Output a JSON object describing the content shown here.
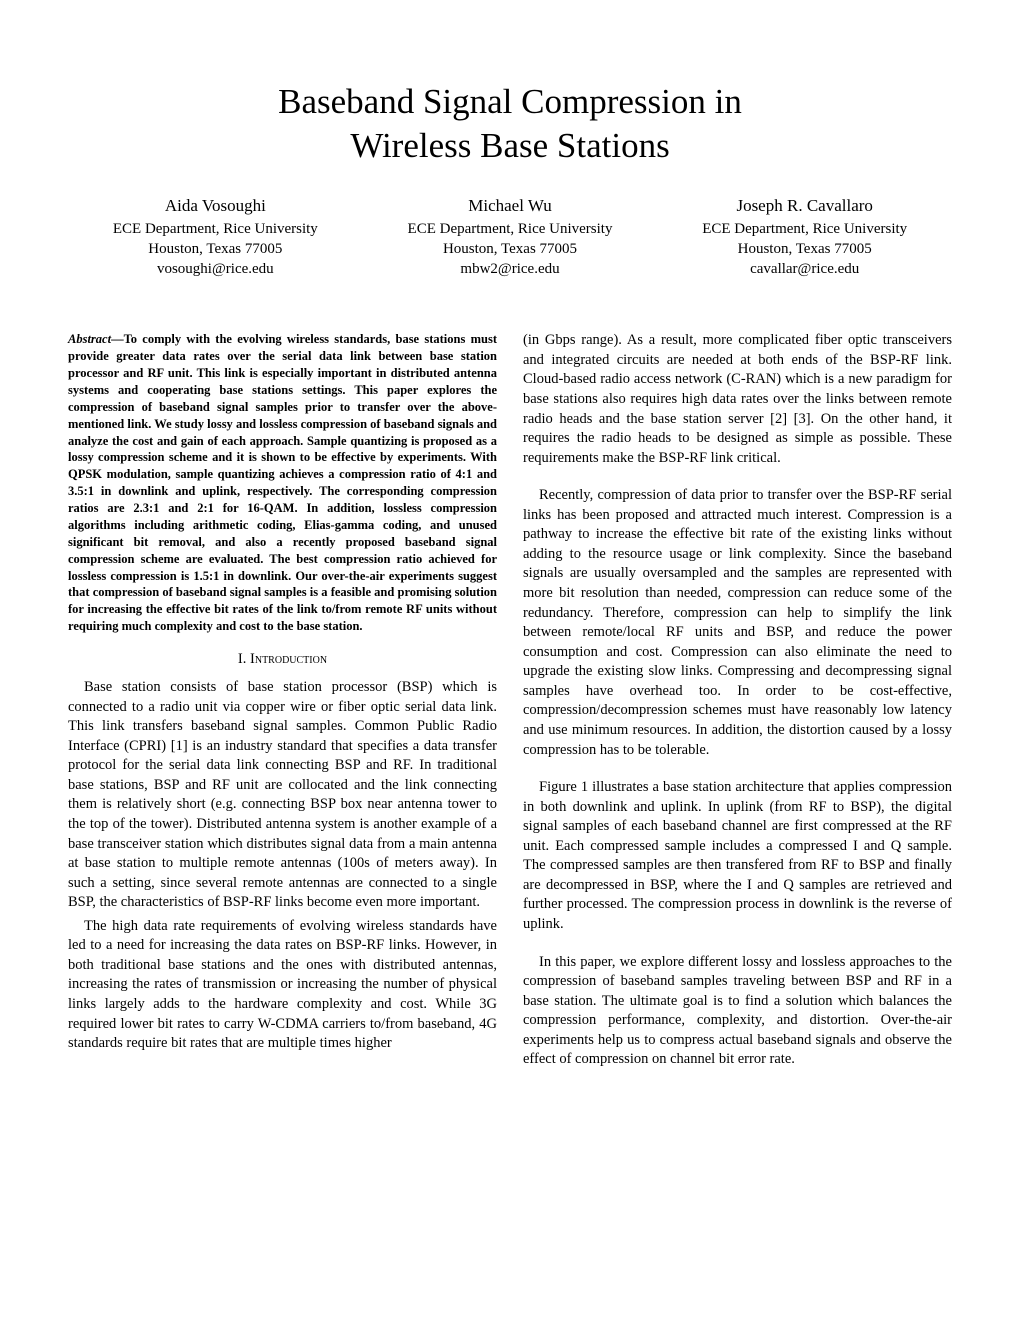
{
  "title_line1": "Baseband Signal Compression in",
  "title_line2": "Wireless Base Stations",
  "authors": [
    {
      "name": "Aida Vosoughi",
      "affil": "ECE Department, Rice University",
      "loc": "Houston, Texas 77005",
      "email": "vosoughi@rice.edu"
    },
    {
      "name": "Michael Wu",
      "affil": "ECE Department, Rice University",
      "loc": "Houston, Texas 77005",
      "email": "mbw2@rice.edu"
    },
    {
      "name": "Joseph R. Cavallaro",
      "affil": "ECE Department, Rice University",
      "loc": "Houston, Texas 77005",
      "email": "cavallar@rice.edu"
    }
  ],
  "abstract_label": "Abstract",
  "abstract_text": "—To comply with the evolving wireless standards, base stations must provide greater data rates over the serial data link between base station processor and RF unit. This link is especially important in distributed antenna systems and cooperating base stations settings. This paper explores the compression of baseband signal samples prior to transfer over the above-mentioned link. We study lossy and lossless compression of baseband signals and analyze the cost and gain of each approach. Sample quantizing is proposed as a lossy compression scheme and it is shown to be effective by experiments. With QPSK modulation, sample quantizing achieves a compression ratio of 4:1 and 3.5:1 in downlink and uplink, respectively. The corresponding compression ratios are 2.3:1 and 2:1 for 16-QAM. In addition, lossless compression algorithms including arithmetic coding, Elias-gamma coding, and unused significant bit removal, and also a recently proposed baseband signal compression scheme are evaluated. The best compression ratio achieved for lossless compression is 1.5:1 in downlink. Our over-the-air experiments suggest that compression of baseband signal samples is a feasible and promising solution for increasing the effective bit rates of the link to/from remote RF units without requiring much complexity and cost to the base station.",
  "section_number": "I.",
  "section_title": "Introduction",
  "left_p1": "Base station consists of base station processor (BSP) which is connected to a radio unit via copper wire or fiber optic serial data link. This link transfers baseband signal samples. Common Public Radio Interface (CPRI) [1] is an industry standard that specifies a data transfer protocol for the serial data link connecting BSP and RF. In traditional base stations, BSP and RF unit are collocated and the link connecting them is relatively short (e.g. connecting BSP box near antenna tower to the top of the tower). Distributed antenna system is another example of a base transceiver station which distributes signal data from a main antenna at base station to multiple remote antennas (100s of meters away). In such a setting, since several remote antennas are connected to a single BSP, the characteristics of BSP-RF links become even more important.",
  "left_p2": "The high data rate requirements of evolving wireless standards have led to a need for increasing the data rates on BSP-RF links. However, in both traditional base stations and the ones with distributed antennas, increasing the rates of transmission or increasing the number of physical links largely adds to the hardware complexity and cost. While 3G required lower bit rates to carry W-CDMA carriers to/from baseband, 4G standards require bit rates that are multiple times higher",
  "right_p1": "(in Gbps range). As a result, more complicated fiber optic transceivers and integrated circuits are needed at both ends of the BSP-RF link. Cloud-based radio access network (C-RAN) which is a new paradigm for base stations also requires high data rates over the links between remote radio heads and the base station server [2] [3]. On the other hand, it requires the radio heads to be designed as simple as possible. These requirements make the BSP-RF link critical.",
  "right_p2": "Recently, compression of data prior to transfer over the BSP-RF serial links has been proposed and attracted much interest. Compression is a pathway to increase the effective bit rate of the existing links without adding to the resource usage or link complexity. Since the baseband signals are usually oversampled and the samples are represented with more bit resolution than needed, compression can reduce some of the redundancy. Therefore, compression can help to simplify the link between remote/local RF units and BSP, and reduce the power consumption and cost. Compression can also eliminate the need to upgrade the existing slow links. Compressing and decompressing signal samples have overhead too. In order to be cost-effective, compression/decompression schemes must have reasonably low latency and use minimum resources. In addition, the distortion caused by a lossy compression has to be tolerable.",
  "right_p3": "Figure 1 illustrates a base station architecture that applies compression in both downlink and uplink. In uplink (from RF to BSP), the digital signal samples of each baseband channel are first compressed at the RF unit. Each compressed sample includes a compressed I and Q sample. The compressed samples are then transfered from RF to BSP and finally are decompressed in BSP, where the I and Q samples are retrieved and further processed. The compression process in downlink is the reverse of uplink.",
  "right_p4": "In this paper, we explore different lossy and lossless approaches to the compression of baseband samples traveling between BSP and RF in a base station. The ultimate goal is to find a solution which balances the compression performance, complexity, and distortion. Over-the-air experiments help us to compress actual baseband signals and observe the effect of compression on channel bit error rate."
}
